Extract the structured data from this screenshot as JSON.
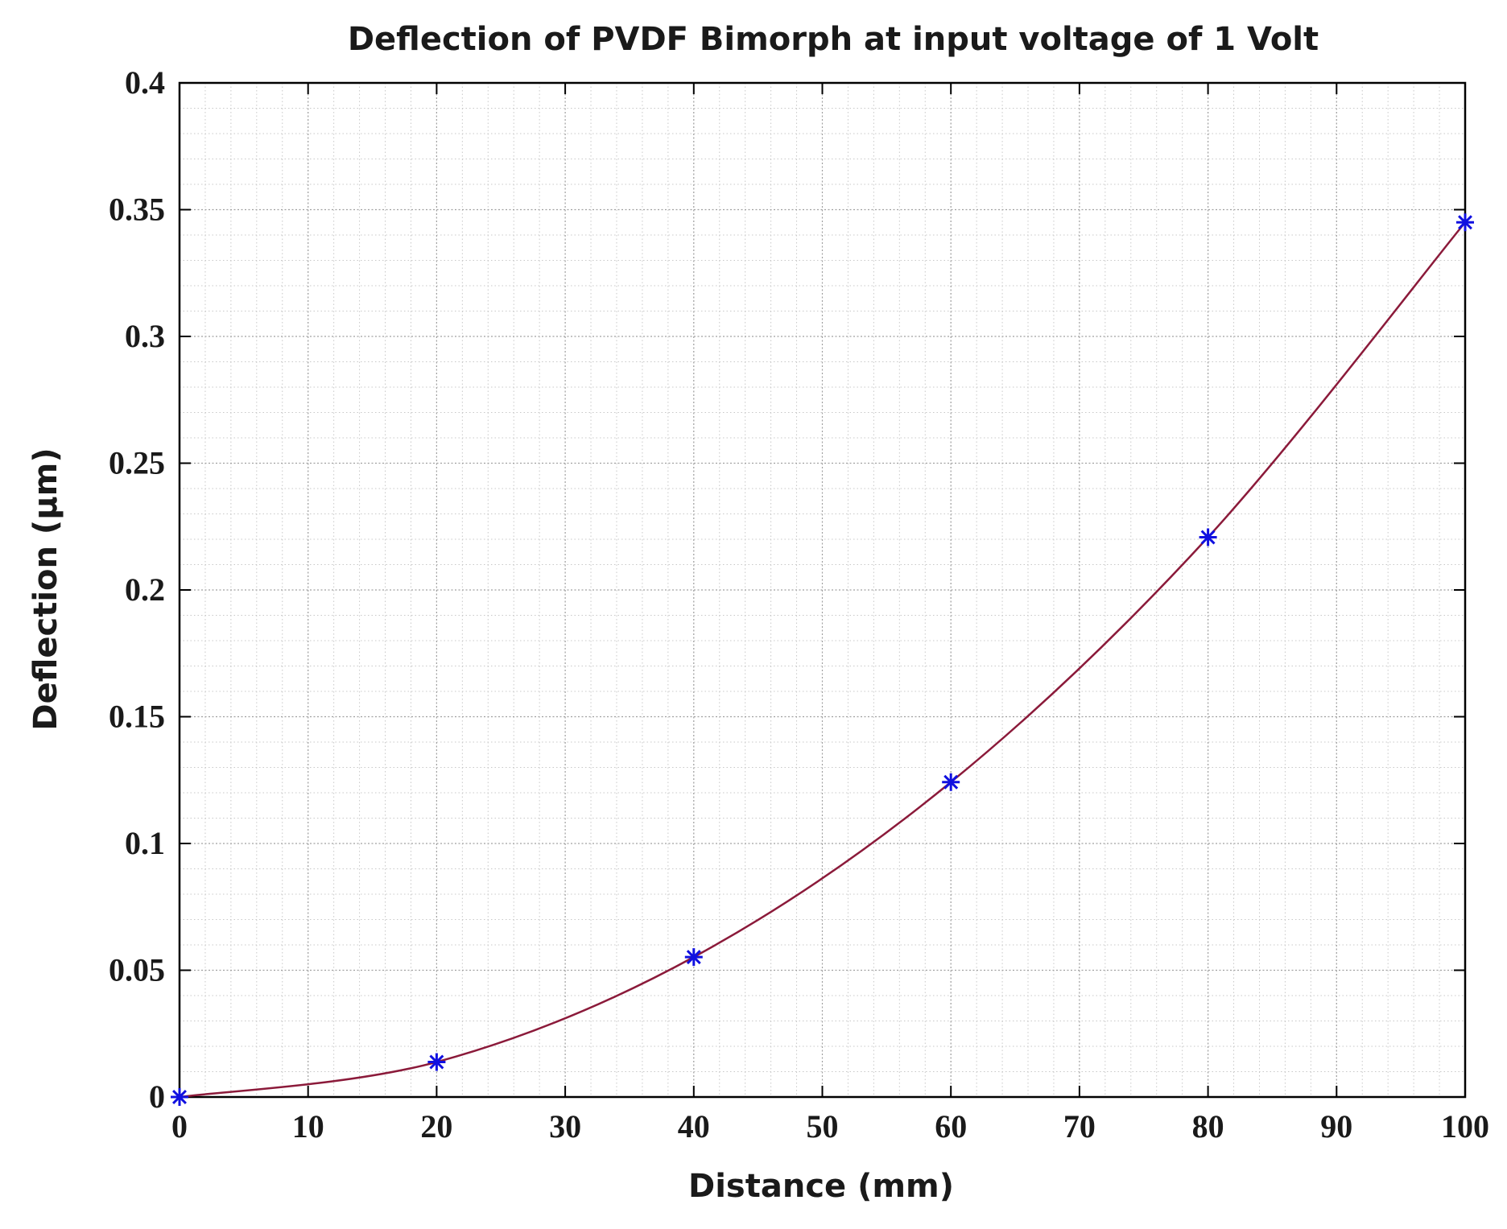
{
  "chart_data": {
    "type": "line",
    "title": "Deflection of PVDF Bimorph at input voltage of 1 Volt",
    "xlabel": "Distance (mm)",
    "ylabel": "Deflection (µm)",
    "xlim": [
      0,
      100
    ],
    "ylim": [
      0,
      0.4
    ],
    "xticks": [
      0,
      10,
      20,
      30,
      40,
      50,
      60,
      70,
      80,
      90,
      100
    ],
    "xtick_labels": [
      "0",
      "10",
      "20",
      "30",
      "40",
      "50",
      "60",
      "70",
      "80",
      "90",
      "100"
    ],
    "yticks": [
      0,
      0.05,
      0.1,
      0.15,
      0.2,
      0.25,
      0.3,
      0.35,
      0.4
    ],
    "ytick_labels": [
      "0",
      "0.05",
      "0.1",
      "0.15",
      "0.2",
      "0.25",
      "0.3",
      "0.35",
      "0.4"
    ],
    "grid": true,
    "minor_grid": true,
    "series": [
      {
        "name": "Deflection",
        "x": [
          0,
          20,
          40,
          60,
          80,
          100
        ],
        "values": [
          0,
          0.0138,
          0.0552,
          0.1242,
          0.2208,
          0.345
        ],
        "line_color": "#8b1a3a",
        "marker": "asterisk",
        "marker_color": "#1010e0"
      }
    ]
  }
}
